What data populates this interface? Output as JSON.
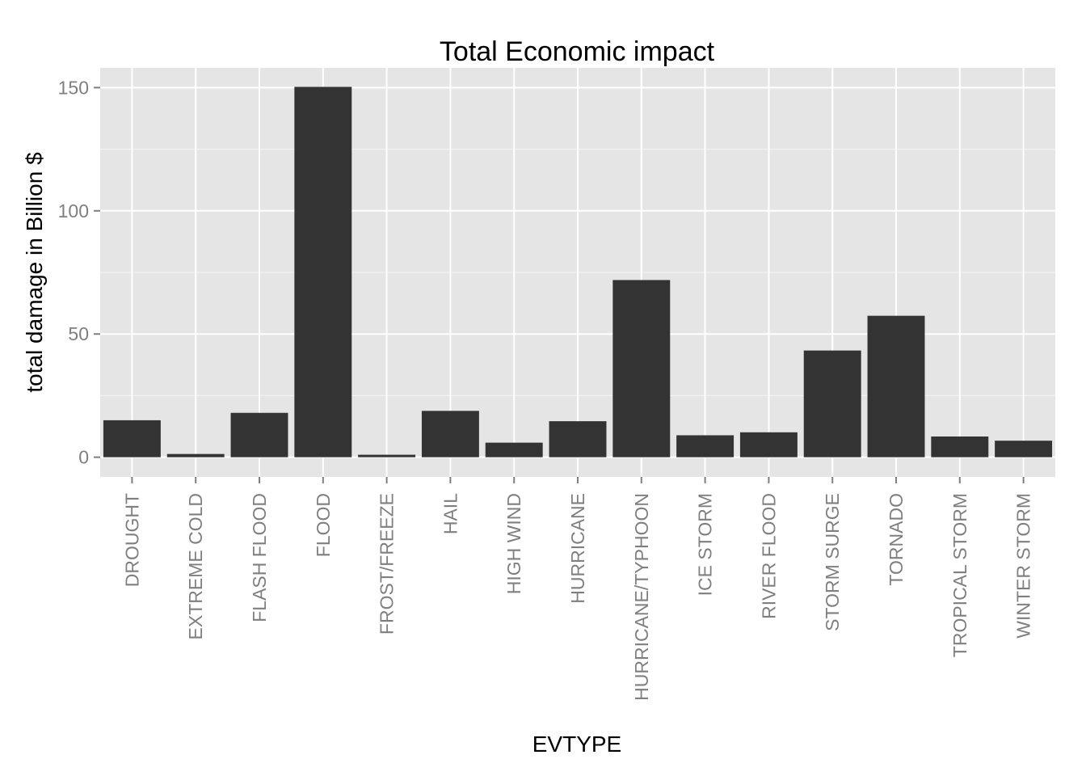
{
  "chart_data": {
    "type": "bar",
    "title": "Total Economic impact",
    "xlabel": "EVTYPE",
    "ylabel": "total damage in Billion $",
    "categories": [
      "DROUGHT",
      "EXTREME COLD",
      "FLASH FLOOD",
      "FLOOD",
      "FROST/FREEZE",
      "HAIL",
      "HIGH WIND",
      "HURRICANE",
      "HURRICANE/TYPHOON",
      "ICE STORM",
      "RIVER FLOOD",
      "STORM SURGE",
      "TORNADO",
      "TROPICAL STORM",
      "WINTER STORM"
    ],
    "values": [
      15.0,
      1.3,
      18.0,
      150.3,
      1.0,
      18.8,
      5.9,
      14.6,
      71.9,
      8.9,
      10.1,
      43.3,
      57.4,
      8.4,
      6.7
    ],
    "ylim": [
      -8,
      158
    ],
    "yticks": [
      0,
      50,
      100,
      150
    ],
    "grid": true,
    "legend": "none",
    "colors": {
      "panel": "#e5e5e5",
      "grid_major": "#ffffff",
      "grid_minor": "#f2f2f2",
      "bar": "#333333",
      "tick_text": "#7f7f7f"
    }
  }
}
